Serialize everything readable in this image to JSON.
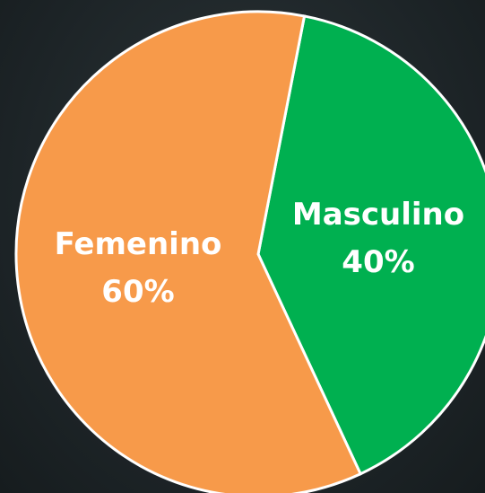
{
  "chart_data": {
    "type": "pie",
    "categories": [
      "Masculino",
      "Femenino"
    ],
    "values": [
      40,
      60
    ],
    "value_labels": [
      "40%",
      "60%"
    ],
    "colors": [
      "#00b050",
      "#f79a4a"
    ]
  }
}
